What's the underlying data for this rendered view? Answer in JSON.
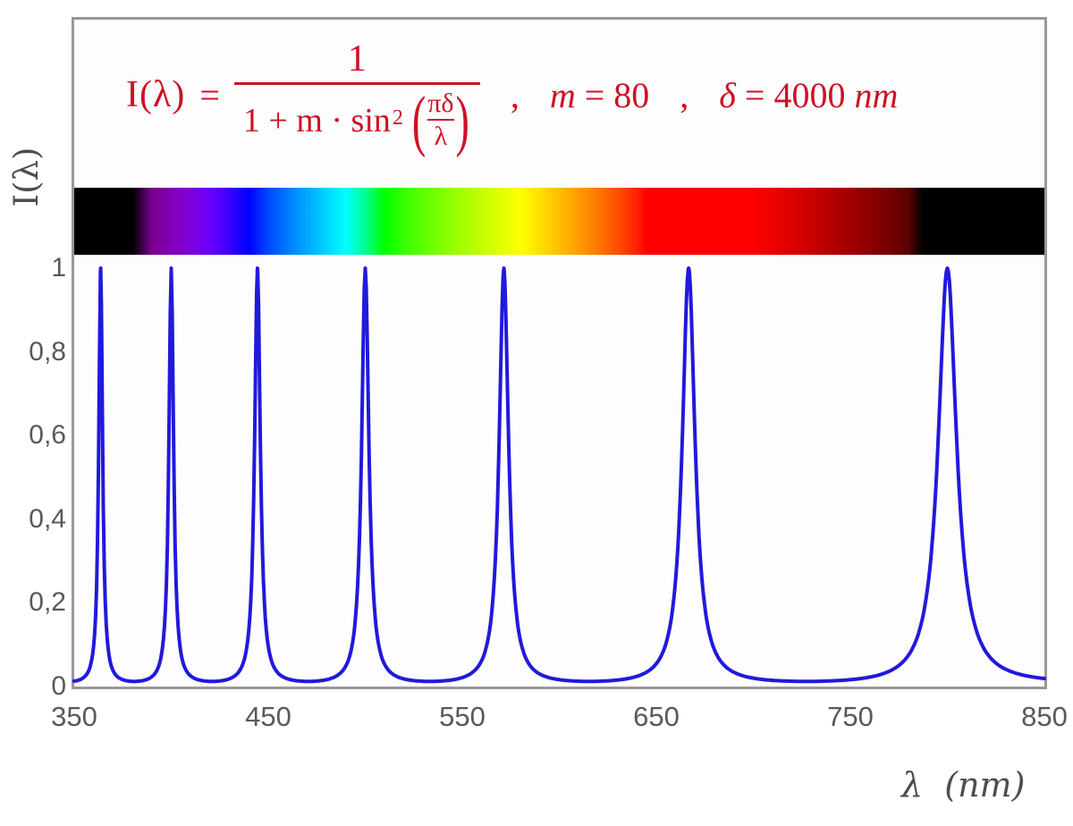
{
  "formula": {
    "color": "#CE1126",
    "lhs": "I(λ)",
    "equals": "=",
    "numerator": "1",
    "den_1plus": "1 + ",
    "den_m": "m",
    "den_dot_sin": " · sin",
    "den_sup": "2",
    "lparen": "(",
    "rparen": ")",
    "inner_numerator": "πδ",
    "inner_denominator": "λ",
    "separator1": ",",
    "param_m_var": "m",
    "param_m_rest": " = 80",
    "separator2": ",",
    "param_d_var": "δ",
    "param_d_rest": " = 4000 ",
    "param_d_unit": "nm"
  },
  "axes": {
    "tick_color": "#595959",
    "y_title": "I(λ)",
    "x_title": "λ  (nm)",
    "y_ticks": [
      "1",
      "0,8",
      "0,6",
      "0,4",
      "0,2",
      "0"
    ],
    "x_ticks": [
      "350",
      "450",
      "550",
      "650",
      "750",
      "850"
    ]
  },
  "chart_data": {
    "type": "line",
    "title": "I(λ) = 1 / (1 + m·sin²(πδ/λ)) ,  m = 80 ,  δ = 4000 nm",
    "xlabel": "λ (nm)",
    "ylabel": "I(λ)",
    "x_range_nm": [
      350,
      850
    ],
    "y_range": [
      0,
      1
    ],
    "x_ticks_nm": [
      350,
      450,
      550,
      650,
      750,
      850
    ],
    "y_ticks": [
      0,
      0.2,
      0.4,
      0.6,
      0.8,
      1
    ],
    "grid": false,
    "legend": null,
    "function": "I(lambda) = 1 / (1 + m * sin(pi*delta/lambda)^2)",
    "params": {
      "m": 80,
      "delta_nm": 4000
    },
    "sample_step_nm": 0.5,
    "peaks_nm": [
      363.64,
      400,
      444.44,
      500,
      571.43,
      666.67,
      800
    ],
    "peak_value": 1,
    "baseline_value": 0.0123,
    "curve_color": "#2119DC",
    "spectrum_bar": {
      "maps_wavelength_nm": [
        350,
        850
      ],
      "visible_range_nm": [
        380,
        780
      ],
      "stops": [
        {
          "p": 0,
          "c": "#000000"
        },
        {
          "p": 6,
          "c": "#000000"
        },
        {
          "p": 8,
          "c": "#79008D"
        },
        {
          "p": 10,
          "c": "#8300B5"
        },
        {
          "p": 12,
          "c": "#7E00DB"
        },
        {
          "p": 14,
          "c": "#6A00FF"
        },
        {
          "p": 16,
          "c": "#3D00FF"
        },
        {
          "p": 18,
          "c": "#0000FF"
        },
        {
          "p": 20,
          "c": "#0046FF"
        },
        {
          "p": 22,
          "c": "#007BFF"
        },
        {
          "p": 24,
          "c": "#00A9FF"
        },
        {
          "p": 26,
          "c": "#00D5FF"
        },
        {
          "p": 28,
          "c": "#00FFFF"
        },
        {
          "p": 30,
          "c": "#00FF92"
        },
        {
          "p": 32,
          "c": "#00FF00"
        },
        {
          "p": 34,
          "c": "#36FF00"
        },
        {
          "p": 36,
          "c": "#5EFF00"
        },
        {
          "p": 38,
          "c": "#81FF00"
        },
        {
          "p": 40,
          "c": "#A3FF00"
        },
        {
          "p": 42,
          "c": "#C3FF00"
        },
        {
          "p": 44,
          "c": "#E1FF00"
        },
        {
          "p": 46,
          "c": "#FFFF00"
        },
        {
          "p": 48,
          "c": "#FFDF00"
        },
        {
          "p": 50,
          "c": "#FFBE00"
        },
        {
          "p": 52,
          "c": "#FF9B00"
        },
        {
          "p": 54,
          "c": "#FF7700"
        },
        {
          "p": 56,
          "c": "#FF4F00"
        },
        {
          "p": 58,
          "c": "#FF2100"
        },
        {
          "p": 59,
          "c": "#FF0000"
        },
        {
          "p": 70,
          "c": "#FF0000"
        },
        {
          "p": 72,
          "c": "#ED0000"
        },
        {
          "p": 74,
          "c": "#DB0000"
        },
        {
          "p": 76,
          "c": "#C80000"
        },
        {
          "p": 78,
          "c": "#B50000"
        },
        {
          "p": 80,
          "c": "#A10000"
        },
        {
          "p": 82,
          "c": "#8D0000"
        },
        {
          "p": 84,
          "c": "#770000"
        },
        {
          "p": 86,
          "c": "#5A0000"
        },
        {
          "p": 87.5,
          "c": "#000000"
        },
        {
          "p": 100,
          "c": "#000000"
        }
      ]
    }
  }
}
